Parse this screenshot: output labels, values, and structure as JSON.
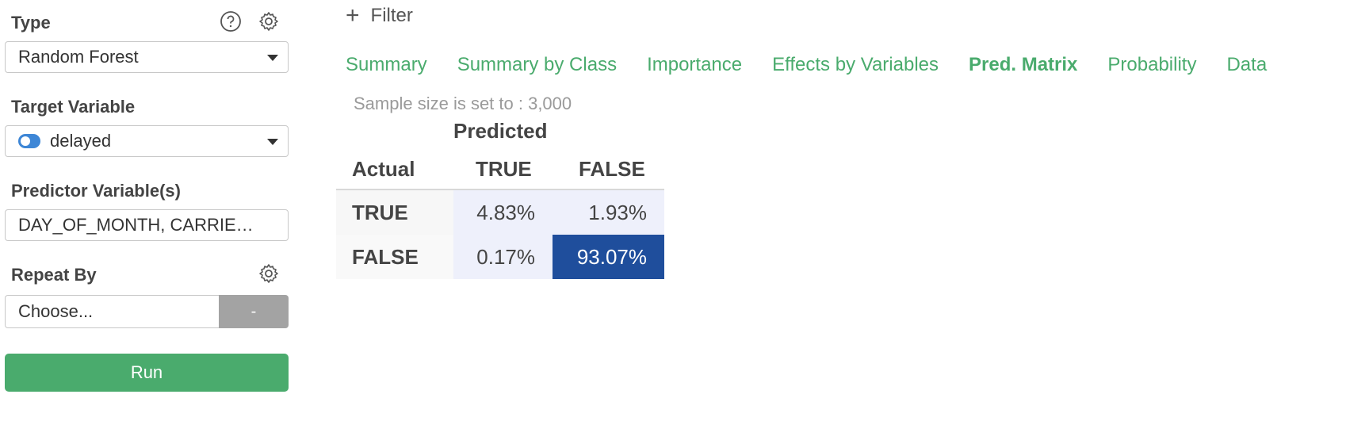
{
  "sidebar": {
    "type_label": "Type",
    "type_value": "Random Forest",
    "target_label": "Target Variable",
    "target_value": "delayed",
    "predictor_label": "Predictor Variable(s)",
    "predictor_value": "DAY_OF_MONTH, CARRIE…",
    "repeat_label": "Repeat By",
    "repeat_placeholder": "Choose...",
    "repeat_dash": "-",
    "run_label": "Run"
  },
  "filter": {
    "icon": "plus-icon",
    "label": "Filter"
  },
  "tabs": [
    {
      "label": "Summary",
      "active": false
    },
    {
      "label": "Summary by Class",
      "active": false
    },
    {
      "label": "Importance",
      "active": false
    },
    {
      "label": "Effects by Variables",
      "active": false
    },
    {
      "label": "Pred. Matrix",
      "active": true
    },
    {
      "label": "Probability",
      "active": false
    },
    {
      "label": "Data",
      "active": false
    }
  ],
  "sample_text": "Sample size is set to : 3,000",
  "matrix": {
    "predicted_header": "Predicted",
    "actual_header": "Actual",
    "col_headers": [
      "TRUE",
      "FALSE"
    ],
    "rows": [
      {
        "label": "TRUE",
        "values": [
          "4.83%",
          "1.93%"
        ]
      },
      {
        "label": "FALSE",
        "values": [
          "0.17%",
          "93.07%"
        ]
      }
    ]
  },
  "colors": {
    "accent_green": "#4aab6d",
    "toggle_blue": "#3d86d6",
    "cell_light": "#eef0fb",
    "cell_dark": "#1f4e9c"
  }
}
